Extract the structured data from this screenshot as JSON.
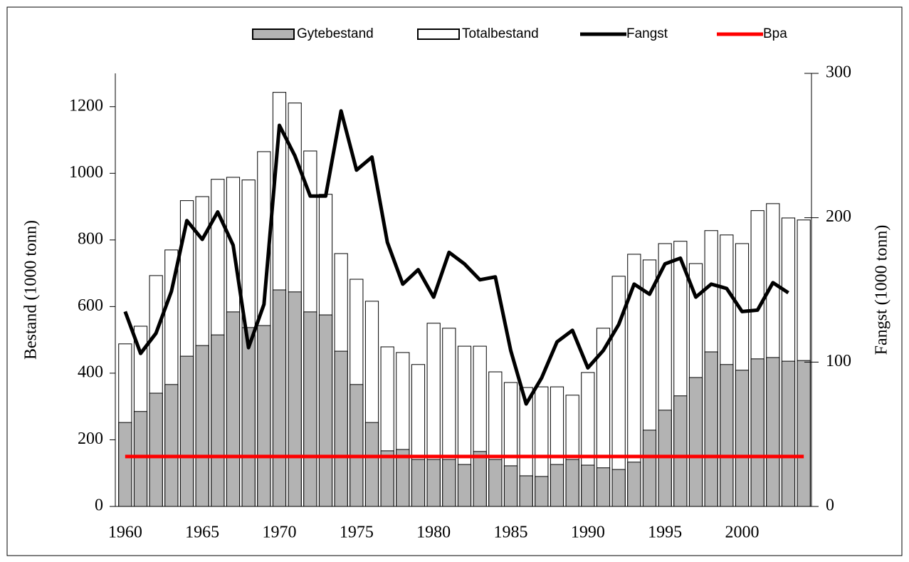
{
  "chart_data": {
    "type": "bar_line",
    "y_label": "Bestand (1000 tonn)",
    "y2_label": "Fangst (1000 tonn)",
    "categories": [
      "1960",
      null,
      null,
      null,
      null,
      "1965",
      null,
      null,
      null,
      null,
      "1970",
      null,
      null,
      null,
      null,
      "1975",
      null,
      null,
      null,
      null,
      "1980",
      null,
      null,
      null,
      null,
      "1985",
      null,
      null,
      null,
      null,
      "1990",
      null,
      null,
      null,
      null,
      "1995",
      null,
      null,
      null,
      null,
      "2000",
      null,
      null,
      null,
      null
    ],
    "ylim": [
      0,
      1300
    ],
    "yticks": [
      0,
      200,
      400,
      600,
      800,
      1000,
      1200
    ],
    "y2lim": [
      0,
      300
    ],
    "y2ticks": [
      0,
      100,
      200,
      300
    ],
    "legend": "top",
    "series": [
      {
        "name": "Gytebestand",
        "kind": "bar",
        "color": "#b3b3b3",
        "values": [
          252,
          285,
          340,
          366,
          451,
          483,
          515,
          584,
          537,
          543,
          650,
          644,
          584,
          575,
          466,
          366,
          252,
          167,
          171,
          141,
          141,
          141,
          126,
          165,
          141,
          122,
          92,
          90,
          126,
          141,
          124,
          116,
          111,
          133,
          229,
          289,
          332,
          387,
          464,
          426,
          409,
          443,
          447,
          436,
          438
        ]
      },
      {
        "name": "Totalbestand",
        "kind": "bar",
        "color": "#ffffff",
        "values": [
          488,
          541,
          693,
          770,
          918,
          930,
          982,
          988,
          980,
          1065,
          1243,
          1211,
          1067,
          937,
          759,
          682,
          616,
          479,
          462,
          426,
          550,
          535,
          481,
          481,
          404,
          372,
          357,
          359,
          359,
          334,
          402,
          535,
          691,
          757,
          740,
          789,
          796,
          729,
          828,
          815,
          789,
          888,
          909,
          866,
          860
        ]
      },
      {
        "name": "Fangst",
        "kind": "line",
        "axis": "y2",
        "color": "#000000",
        "values": [
          135,
          106,
          120,
          149,
          198,
          185,
          204,
          181,
          110,
          140,
          264,
          243,
          215,
          215,
          274,
          233,
          242,
          183,
          154,
          164,
          145,
          176,
          168,
          157,
          159,
          108,
          71,
          89,
          114,
          122,
          96,
          108,
          126,
          154,
          147,
          168,
          172,
          145,
          154,
          151,
          135,
          136,
          155,
          148,
          null
        ]
      },
      {
        "name": "Bpa",
        "kind": "line",
        "color": "#ff0000",
        "values": [
          150,
          150,
          150,
          150,
          150,
          150,
          150,
          150,
          150,
          150,
          150,
          150,
          150,
          150,
          150,
          150,
          150,
          150,
          150,
          150,
          150,
          150,
          150,
          150,
          150,
          150,
          150,
          150,
          150,
          150,
          150,
          150,
          150,
          150,
          150,
          150,
          150,
          150,
          150,
          150,
          150,
          150,
          150,
          150,
          150
        ]
      }
    ]
  }
}
